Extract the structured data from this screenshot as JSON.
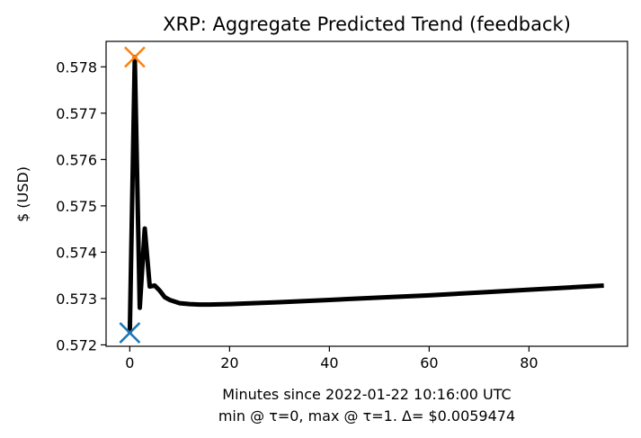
{
  "chart_data": {
    "type": "line",
    "title": "XRP: Aggregate Predicted Trend (feedback)",
    "xlabel": "Minutes since 2022-01-22 10:16:00 UTC",
    "xlabel_line2": "min @ τ=0, max @ τ=1. Δ= $0.0059474",
    "ylabel": "$ (USD)",
    "xlim": [
      -4.75,
      99.75
    ],
    "ylim": [
      0.57197,
      0.57855
    ],
    "xticks": [
      0,
      20,
      40,
      60,
      80
    ],
    "yticks": [
      0.572,
      0.573,
      0.574,
      0.575,
      0.576,
      0.577,
      0.578
    ],
    "ytick_labels": [
      "0.572",
      "0.573",
      "0.574",
      "0.575",
      "0.576",
      "0.577",
      "0.578"
    ],
    "series": [
      {
        "color": "#000000",
        "x": [
          0,
          1,
          2,
          3,
          4,
          5,
          6,
          7,
          8,
          10,
          12,
          14,
          16,
          20,
          30,
          40,
          50,
          60,
          70,
          80,
          90,
          95
        ],
        "y": [
          0.57226,
          0.57821,
          0.5728,
          0.57451,
          0.57326,
          0.57328,
          0.57317,
          0.57303,
          0.57297,
          0.5729,
          0.57288,
          0.57287,
          0.57287,
          0.57288,
          0.57292,
          0.57297,
          0.57302,
          0.57307,
          0.57313,
          0.57319,
          0.57325,
          0.57328
        ]
      }
    ],
    "markers": [
      {
        "type": "min",
        "x": 0,
        "y": 0.57226,
        "color": "#1f77b4"
      },
      {
        "type": "max",
        "x": 1,
        "y": 0.57821,
        "color": "#ff7f0e"
      }
    ]
  }
}
